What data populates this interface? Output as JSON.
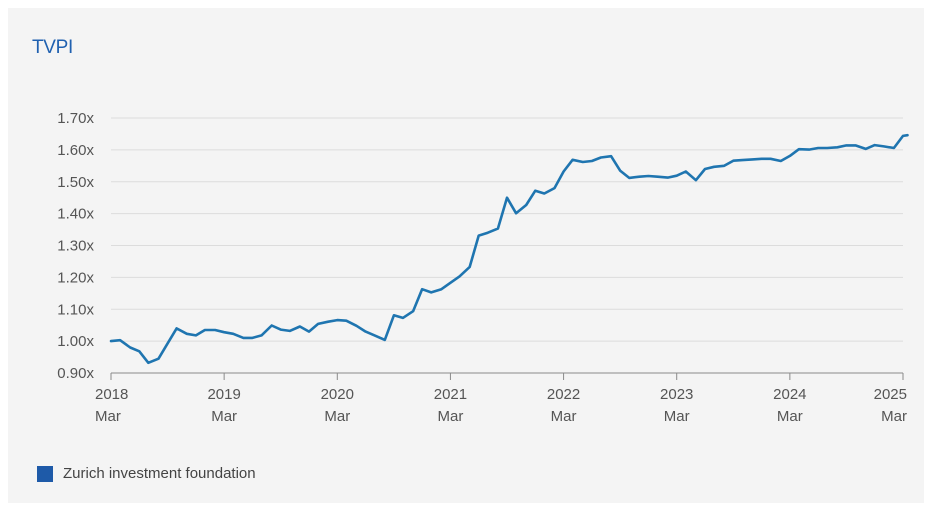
{
  "chart_data": {
    "type": "line",
    "title": "TVPI",
    "xlabel": "",
    "ylabel": "",
    "ylim": [
      0.9,
      1.7
    ],
    "y_ticks": [
      0.9,
      1.0,
      1.1,
      1.2,
      1.3,
      1.4,
      1.5,
      1.6,
      1.7
    ],
    "y_tick_labels": [
      "0.90x",
      "1.00x",
      "1.10x",
      "1.20x",
      "1.30x",
      "1.40x",
      "1.50x",
      "1.60x",
      "1.70x"
    ],
    "x_range": [
      2018.0,
      2025.0
    ],
    "x_ticks": [
      {
        "x": 2018,
        "year": "2018",
        "month": "Mar"
      },
      {
        "x": 2019,
        "year": "2019",
        "month": "Mar"
      },
      {
        "x": 2020,
        "year": "2020",
        "month": "Mar"
      },
      {
        "x": 2021,
        "year": "2021",
        "month": "Mar"
      },
      {
        "x": 2022,
        "year": "2022",
        "month": "Mar"
      },
      {
        "x": 2023,
        "year": "2023",
        "month": "Mar"
      },
      {
        "x": 2024,
        "year": "2024",
        "month": "Mar"
      },
      {
        "x": 2025,
        "year": "2025",
        "month": "Mar"
      }
    ],
    "grid": true,
    "legend_position": "bottom-left",
    "series": [
      {
        "name": "Zurich investment foundation",
        "color": "#1f75b0",
        "points": [
          [
            2018.0,
            1.0
          ],
          [
            2018.08,
            1.003
          ],
          [
            2018.17,
            0.98
          ],
          [
            2018.25,
            0.968
          ],
          [
            2018.33,
            0.932
          ],
          [
            2018.42,
            0.945
          ],
          [
            2018.5,
            0.993
          ],
          [
            2018.58,
            1.04
          ],
          [
            2018.67,
            1.023
          ],
          [
            2018.75,
            1.018
          ],
          [
            2018.83,
            1.035
          ],
          [
            2018.92,
            1.035
          ],
          [
            2019.0,
            1.028
          ],
          [
            2019.08,
            1.023
          ],
          [
            2019.17,
            1.01
          ],
          [
            2019.25,
            1.01
          ],
          [
            2019.33,
            1.018
          ],
          [
            2019.42,
            1.049
          ],
          [
            2019.5,
            1.036
          ],
          [
            2019.58,
            1.032
          ],
          [
            2019.67,
            1.046
          ],
          [
            2019.75,
            1.03
          ],
          [
            2019.83,
            1.054
          ],
          [
            2019.92,
            1.061
          ],
          [
            2020.0,
            1.066
          ],
          [
            2020.08,
            1.064
          ],
          [
            2020.17,
            1.048
          ],
          [
            2020.25,
            1.03
          ],
          [
            2020.33,
            1.018
          ],
          [
            2020.42,
            1.004
          ],
          [
            2020.5,
            1.081
          ],
          [
            2020.58,
            1.073
          ],
          [
            2020.67,
            1.094
          ],
          [
            2020.75,
            1.163
          ],
          [
            2020.83,
            1.153
          ],
          [
            2020.92,
            1.163
          ],
          [
            2021.0,
            1.183
          ],
          [
            2021.08,
            1.203
          ],
          [
            2021.17,
            1.233
          ],
          [
            2021.25,
            1.331
          ],
          [
            2021.33,
            1.34
          ],
          [
            2021.42,
            1.353
          ],
          [
            2021.5,
            1.45
          ],
          [
            2021.58,
            1.401
          ],
          [
            2021.67,
            1.427
          ],
          [
            2021.75,
            1.472
          ],
          [
            2021.83,
            1.463
          ],
          [
            2021.92,
            1.48
          ],
          [
            2022.0,
            1.532
          ],
          [
            2022.08,
            1.569
          ],
          [
            2022.17,
            1.562
          ],
          [
            2022.25,
            1.565
          ],
          [
            2022.33,
            1.576
          ],
          [
            2022.42,
            1.58
          ],
          [
            2022.5,
            1.535
          ],
          [
            2022.58,
            1.512
          ],
          [
            2022.67,
            1.516
          ],
          [
            2022.75,
            1.518
          ],
          [
            2022.83,
            1.516
          ],
          [
            2022.92,
            1.513
          ],
          [
            2023.0,
            1.519
          ],
          [
            2023.08,
            1.532
          ],
          [
            2023.17,
            1.505
          ],
          [
            2023.25,
            1.54
          ],
          [
            2023.33,
            1.547
          ],
          [
            2023.42,
            1.55
          ],
          [
            2023.5,
            1.566
          ],
          [
            2023.58,
            1.568
          ],
          [
            2023.67,
            1.57
          ],
          [
            2023.75,
            1.572
          ],
          [
            2023.83,
            1.572
          ],
          [
            2023.92,
            1.565
          ],
          [
            2024.0,
            1.581
          ],
          [
            2024.08,
            1.602
          ],
          [
            2024.17,
            1.601
          ],
          [
            2024.25,
            1.606
          ],
          [
            2024.33,
            1.606
          ],
          [
            2024.42,
            1.608
          ],
          [
            2024.5,
            1.614
          ],
          [
            2024.58,
            1.614
          ],
          [
            2024.67,
            1.603
          ],
          [
            2024.75,
            1.615
          ],
          [
            2024.83,
            1.611
          ],
          [
            2024.92,
            1.606
          ],
          [
            2025.0,
            1.644
          ],
          [
            2025.04,
            1.646
          ]
        ]
      }
    ]
  }
}
